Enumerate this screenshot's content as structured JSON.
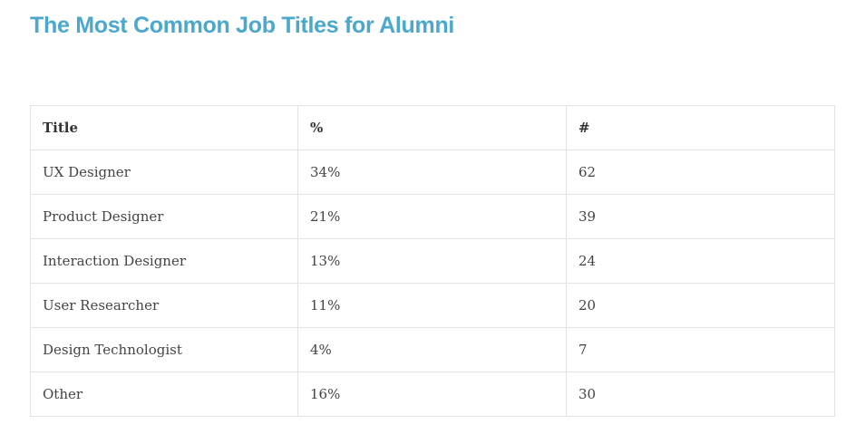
{
  "page": {
    "title": "The Most Common Job Titles for Alumni"
  },
  "colors": {
    "accent": "#4aa8cc",
    "border": "#e3e3e3"
  },
  "table": {
    "headers": [
      "Title",
      "%",
      "#"
    ],
    "rows": [
      [
        "UX Designer",
        "34%",
        "62"
      ],
      [
        "Product Designer",
        "21%",
        "39"
      ],
      [
        "Interaction Designer",
        "13%",
        "24"
      ],
      [
        "User Researcher",
        "11%",
        "20"
      ],
      [
        "Design Technologist",
        "4%",
        "7"
      ],
      [
        "Other",
        "16%",
        "30"
      ]
    ]
  }
}
